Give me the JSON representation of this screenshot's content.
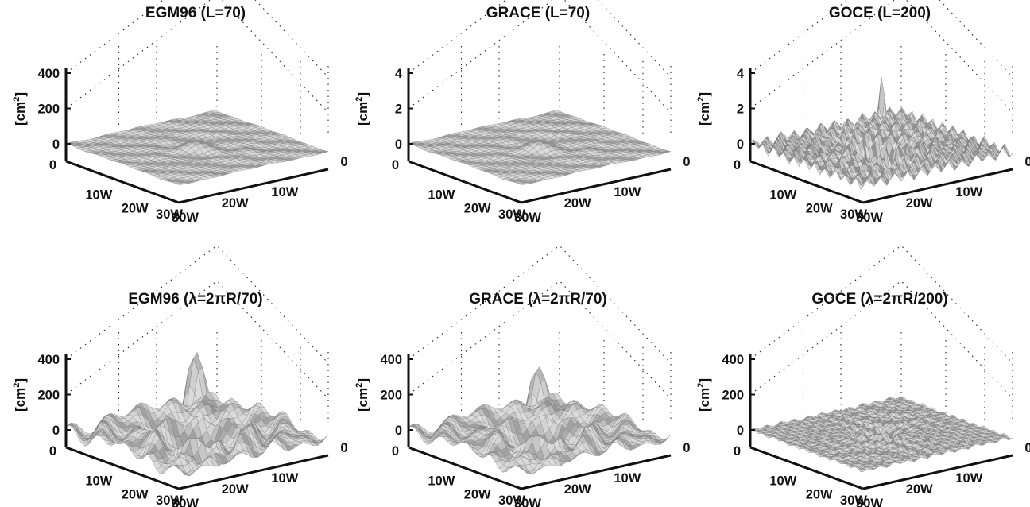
{
  "chart_data": [
    {
      "type": "surface",
      "title": "EGM96 (L=70)",
      "ylabel": "[cm2]",
      "zticks": [
        "0",
        "200",
        "400"
      ],
      "zlim": [
        0,
        450
      ],
      "xticks": [
        "0",
        "10W",
        "20W",
        "30W"
      ],
      "yticks": [
        "30W",
        "20W",
        "10W",
        "0"
      ],
      "peak": 40,
      "degree": 70,
      "grid": true
    },
    {
      "type": "surface",
      "title": "GRACE (L=70)",
      "ylabel": "[cm2]",
      "zticks": [
        "0",
        "2",
        "4"
      ],
      "zlim": [
        0,
        4.5
      ],
      "xticks": [
        "0",
        "10W",
        "20W",
        "30W"
      ],
      "yticks": [
        "30W",
        "20W",
        "10W",
        "0"
      ],
      "peak": 0.4,
      "degree": 70,
      "grid": true
    },
    {
      "type": "surface",
      "title": "GOCE (L=200)",
      "ylabel": "[cm2]",
      "zticks": [
        "0",
        "2",
        "4"
      ],
      "zlim": [
        0,
        4.5
      ],
      "xticks": [
        "0",
        "10W",
        "20W",
        "30W"
      ],
      "yticks": [
        "30W",
        "20W",
        "10W",
        "0"
      ],
      "peak": 4,
      "degree": 200,
      "grid": true
    },
    {
      "type": "surface",
      "title": "EGM96 (λ=2πR/70)",
      "ylabel": "[cm2]",
      "zticks": [
        "0",
        "200",
        "400"
      ],
      "zlim": [
        0,
        450
      ],
      "xticks": [
        "0",
        "10W",
        "20W",
        "30W"
      ],
      "yticks": [
        "30W",
        "20W",
        "10W",
        "0"
      ],
      "peak": 460,
      "degree": 70,
      "grid": true
    },
    {
      "type": "surface",
      "title": "GRACE (λ=2πR/70)",
      "ylabel": "[cm2]",
      "zticks": [
        "0",
        "200",
        "400"
      ],
      "zlim": [
        0,
        450
      ],
      "xticks": [
        "0",
        "10W",
        "20W",
        "30W"
      ],
      "yticks": [
        "30W",
        "20W",
        "10W",
        "0"
      ],
      "peak": 380,
      "degree": 70,
      "grid": true
    },
    {
      "type": "surface",
      "title": "GOCE (λ=2πR/200)",
      "ylabel": "[cm2]",
      "zticks": [
        "0",
        "200",
        "400"
      ],
      "zlim": [
        0,
        450
      ],
      "xticks": [
        "0",
        "10W",
        "20W",
        "30W"
      ],
      "yticks": [
        "30W",
        "20W",
        "10W",
        "0"
      ],
      "peak": 120,
      "degree": 200,
      "grid": true
    }
  ],
  "colors": {
    "axis": "#111111",
    "surface_light": "#d4d4d4",
    "surface_dark": "#8a8a8a",
    "mesh": "#5a5a5a"
  }
}
